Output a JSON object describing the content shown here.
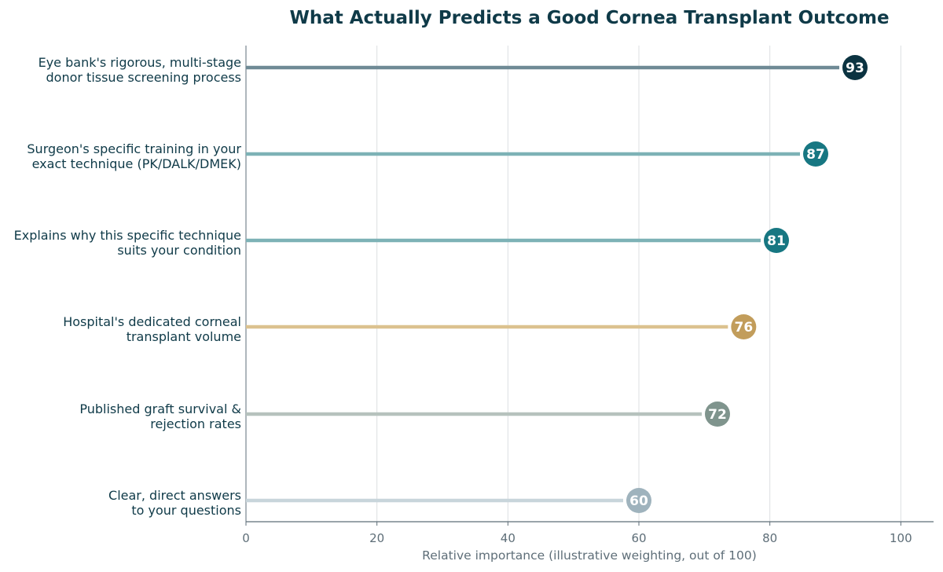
{
  "chart_data": {
    "type": "lollipop",
    "title": "What Actually Predicts a Good Cornea Transplant Outcome",
    "xlabel": "Relative importance (illustrative weighting, out of 100)",
    "ylabel": "",
    "xlim": [
      0,
      105
    ],
    "x_ticks": [
      0,
      20,
      40,
      60,
      80,
      100
    ],
    "grid": "vertical",
    "orientation": "horizontal",
    "categories": [
      [
        "Eye bank's rigorous, multi-stage",
        "donor tissue screening process"
      ],
      [
        "Surgeon's specific training in your",
        "exact technique (PK/DALK/DMEK)"
      ],
      [
        "Explains why this specific technique",
        "suits your condition"
      ],
      [
        "Hospital's dedicated corneal",
        "transplant volume"
      ],
      [
        "Published graft survival &",
        "rejection rates"
      ],
      [
        "Clear, direct answers",
        "to your questions"
      ]
    ],
    "values": [
      93,
      87,
      81,
      76,
      72,
      60
    ],
    "colors": {
      "dots": [
        "#0b3341",
        "#177782",
        "#177782",
        "#c29d5b",
        "#7f948d",
        "#9fb3bd"
      ],
      "stems": [
        "#6f8a95",
        "#7db2b6",
        "#7db2b6",
        "#dcc28f",
        "#b6c2bd",
        "#c8d5db"
      ],
      "value_text": "#ffffff",
      "title": "#0f3a48",
      "category_text": "#0f3a48",
      "axis_text": "#5e6e78",
      "axis_line": "#5e6e78",
      "grid": "#dcdfe2"
    }
  }
}
